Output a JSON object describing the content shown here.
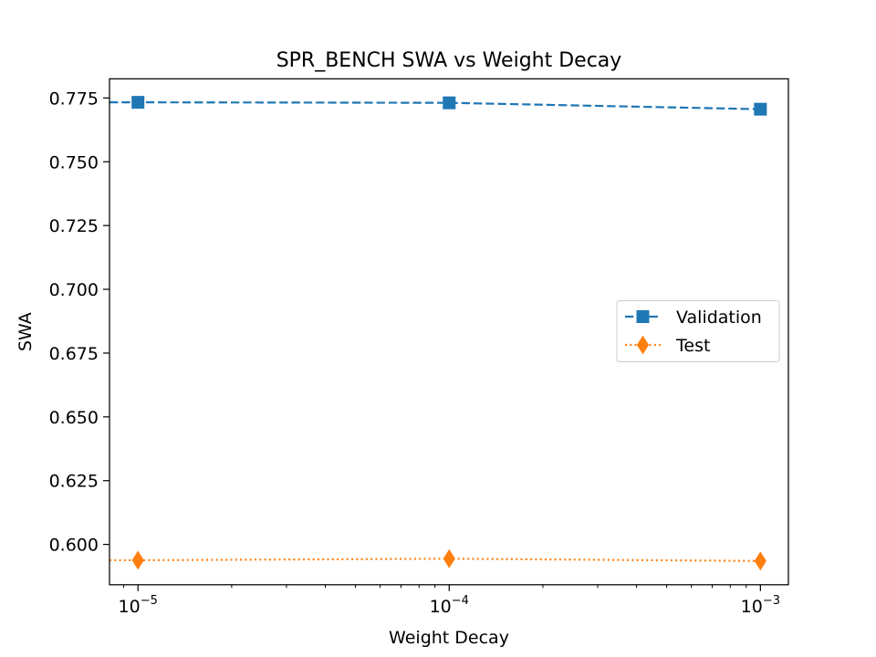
{
  "chart_data": {
    "type": "line",
    "title": "SPR_BENCH SWA vs Weight Decay",
    "xlabel": "Weight Decay",
    "ylabel": "SWA",
    "xscale": "log",
    "x": [
      1e-05,
      0.0001,
      0.001
    ],
    "xlim": [
      8.1e-06,
      0.00123
    ],
    "ylim": [
      0.5842,
      0.7825
    ],
    "xticks": [
      {
        "value": 1e-05,
        "base": "10",
        "exp": "−5"
      },
      {
        "value": 0.0001,
        "base": "10",
        "exp": "−4"
      },
      {
        "value": 0.001,
        "base": "10",
        "exp": "−3"
      }
    ],
    "yticks": [
      0.6,
      0.625,
      0.65,
      0.675,
      0.7,
      0.725,
      0.75,
      0.775
    ],
    "series": [
      {
        "name": "Validation",
        "values": [
          0.7733,
          0.7731,
          0.7706
        ],
        "color": "#1f77b4",
        "marker": "square",
        "linestyle": "dashed"
      },
      {
        "name": "Test",
        "values": [
          0.5938,
          0.5944,
          0.5935
        ],
        "color": "#ff7f0e",
        "marker": "thin-diamond",
        "linestyle": "dotted"
      }
    ],
    "legend_position": "center-right",
    "grid": false
  }
}
